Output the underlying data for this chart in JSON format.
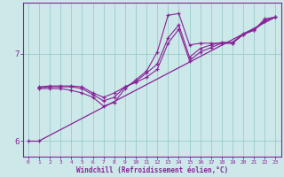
{
  "xlabel": "Windchill (Refroidissement éolien,°C)",
  "bg_color": "#cce8e8",
  "line_color": "#882299",
  "grid_color": "#99cccc",
  "xlim": [
    -0.5,
    23.5
  ],
  "ylim": [
    5.82,
    7.58
  ],
  "yticks": [
    6,
    7
  ],
  "xticks": [
    0,
    1,
    2,
    3,
    4,
    5,
    6,
    7,
    8,
    9,
    10,
    11,
    12,
    13,
    14,
    15,
    16,
    17,
    18,
    19,
    20,
    21,
    22,
    23
  ],
  "line1_x": [
    1,
    2,
    3,
    4,
    5,
    6,
    7,
    8,
    9,
    10,
    11,
    12,
    13,
    14,
    15,
    16,
    17,
    18,
    19,
    20,
    21,
    22,
    23
  ],
  "line1_y": [
    6.62,
    6.63,
    6.63,
    6.63,
    6.62,
    6.55,
    6.5,
    6.55,
    6.62,
    6.67,
    6.73,
    6.82,
    7.12,
    7.28,
    6.92,
    7.02,
    7.07,
    7.12,
    7.12,
    7.22,
    7.27,
    7.37,
    7.42
  ],
  "line2_x": [
    1,
    2,
    3,
    4,
    5,
    6,
    7,
    8,
    9,
    10,
    11,
    12,
    13,
    14,
    15,
    16,
    17,
    18,
    19,
    20,
    21,
    22,
    23
  ],
  "line2_y": [
    6.6,
    6.6,
    6.6,
    6.58,
    6.55,
    6.5,
    6.4,
    6.44,
    6.6,
    6.7,
    6.8,
    7.02,
    7.44,
    7.46,
    7.1,
    7.12,
    7.12,
    7.12,
    7.12,
    7.22,
    7.27,
    7.4,
    7.42
  ],
  "line3_x": [
    1,
    2,
    3,
    4,
    5,
    6,
    7,
    8,
    9,
    10,
    11,
    12,
    13,
    14,
    15,
    16,
    17,
    18,
    19,
    20,
    21,
    22,
    23
  ],
  "line3_y": [
    6.61,
    6.62,
    6.62,
    6.62,
    6.6,
    6.53,
    6.46,
    6.5,
    6.62,
    6.68,
    6.78,
    6.88,
    7.18,
    7.33,
    6.96,
    7.06,
    7.1,
    7.13,
    7.13,
    7.23,
    7.28,
    7.38,
    7.42
  ],
  "line4_x": [
    1,
    23
  ],
  "line4_y": [
    6.0,
    7.42
  ],
  "line5_x": [
    0,
    1
  ],
  "line5_y": [
    6.0,
    6.0
  ]
}
